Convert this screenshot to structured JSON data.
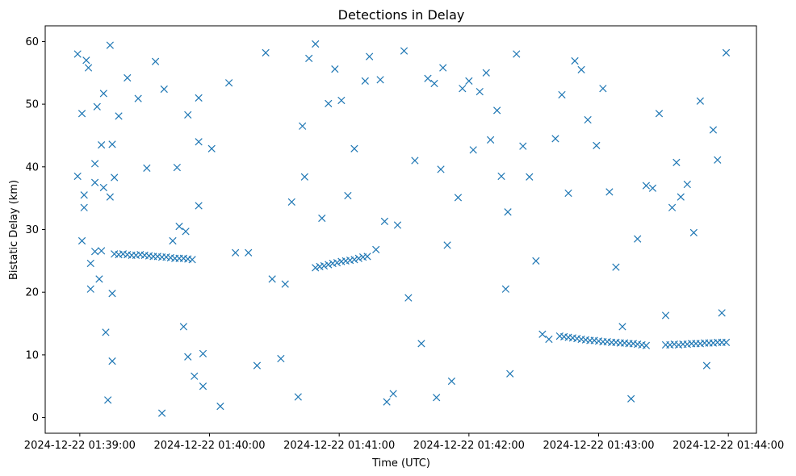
{
  "chart_data": {
    "type": "scatter",
    "title": "Detections in Delay",
    "xlabel": "Time (UTC)",
    "ylabel": "Bistatic Delay (km)",
    "x_unit": "time-of-day",
    "xlim": [
      "01:38:44",
      "01:44:13"
    ],
    "ylim": [
      -2.5,
      62.5
    ],
    "x_ticks": [
      "01:39:00",
      "01:40:00",
      "01:41:00",
      "01:42:00",
      "01:43:00",
      "01:44:00"
    ],
    "x_tick_labels": [
      "2024-12-22 01:39:00",
      "2024-12-22 01:40:00",
      "2024-12-22 01:41:00",
      "2024-12-22 01:42:00",
      "2024-12-22 01:43:00",
      "2024-12-22 01:44:00"
    ],
    "y_ticks": [
      0,
      10,
      20,
      30,
      40,
      50,
      60
    ],
    "grid": false,
    "marker": "x",
    "color": "#1f77b4",
    "series": [
      {
        "x": [
          "01:38:59",
          "01:38:59",
          "01:39:01",
          "01:39:01",
          "01:39:02",
          "01:39:02",
          "01:39:03",
          "01:39:04",
          "01:39:05",
          "01:39:05",
          "01:39:07",
          "01:39:07",
          "01:39:07",
          "01:39:08",
          "01:39:09",
          "01:39:10",
          "01:39:10",
          "01:39:11",
          "01:39:11",
          "01:39:12",
          "01:39:13",
          "01:39:14",
          "01:39:14",
          "01:39:15",
          "01:39:15",
          "01:39:15",
          "01:39:16",
          "01:39:18",
          "01:39:22",
          "01:39:27",
          "01:39:31",
          "01:39:35",
          "01:39:38",
          "01:39:39",
          "01:39:43",
          "01:39:45",
          "01:39:46",
          "01:39:48",
          "01:39:49",
          "01:39:50",
          "01:39:50",
          "01:39:53",
          "01:39:55",
          "01:39:55",
          "01:39:55",
          "01:39:57",
          "01:39:57",
          "01:40:01",
          "01:40:05",
          "01:40:09",
          "01:40:12",
          "01:40:18",
          "01:40:22",
          "01:40:26",
          "01:40:29",
          "01:40:33",
          "01:40:35",
          "01:40:38",
          "01:40:41",
          "01:40:43",
          "01:40:44",
          "01:40:46",
          "01:40:49",
          "01:40:52",
          "01:40:55",
          "01:40:58",
          "01:41:01",
          "01:41:04",
          "01:41:07",
          "01:41:12",
          "01:41:14",
          "01:41:17",
          "01:41:19",
          "01:41:21",
          "01:41:22",
          "01:41:25",
          "01:41:27",
          "01:41:30",
          "01:41:32",
          "01:41:35",
          "01:41:38",
          "01:41:41",
          "01:41:44",
          "01:41:45",
          "01:41:47",
          "01:41:48",
          "01:41:50",
          "01:41:52",
          "01:41:55",
          "01:41:57",
          "01:42:00",
          "01:42:02",
          "01:42:05",
          "01:42:08",
          "01:42:10",
          "01:42:13",
          "01:42:15",
          "01:42:17",
          "01:42:18",
          "01:42:19",
          "01:42:22",
          "01:42:25",
          "01:42:28",
          "01:42:31",
          "01:42:34",
          "01:42:37",
          "01:42:40",
          "01:42:43",
          "01:42:46",
          "01:42:49",
          "01:42:52",
          "01:42:55",
          "01:42:59",
          "01:43:02",
          "01:43:05",
          "01:43:08",
          "01:43:11",
          "01:43:15",
          "01:43:18",
          "01:43:22",
          "01:43:25",
          "01:43:28",
          "01:43:31",
          "01:43:34",
          "01:43:36",
          "01:43:38",
          "01:43:41",
          "01:43:44",
          "01:43:47",
          "01:43:50",
          "01:43:53",
          "01:43:55",
          "01:43:57",
          "01:43:59"
        ],
        "y": [
          58.0,
          38.5,
          48.5,
          28.2,
          35.5,
          33.5,
          57.0,
          55.8,
          20.5,
          24.6,
          37.5,
          26.5,
          40.5,
          49.6,
          22.1,
          26.6,
          43.5,
          36.7,
          51.7,
          13.6,
          2.8,
          59.4,
          35.2,
          43.6,
          19.8,
          9.0,
          38.3,
          48.1,
          54.2,
          50.9,
          39.8,
          56.8,
          0.7,
          52.4,
          28.2,
          39.9,
          30.5,
          14.5,
          29.7,
          48.3,
          9.7,
          6.6,
          44.0,
          33.8,
          51.0,
          5.0,
          10.2,
          42.9,
          1.8,
          53.4,
          26.3,
          26.3,
          8.3,
          58.2,
          22.1,
          9.4,
          21.3,
          34.4,
          3.3,
          46.5,
          38.4,
          57.3,
          59.6,
          31.8,
          50.1,
          55.6,
          50.6,
          35.4,
          42.9,
          53.7,
          57.6,
          26.8,
          53.9,
          31.3,
          2.5,
          3.8,
          30.7,
          58.5,
          19.1,
          41.0,
          11.8,
          54.1,
          53.3,
          3.2,
          39.6,
          55.8,
          27.5,
          5.8,
          35.1,
          52.5,
          53.7,
          42.7,
          52.0,
          55.0,
          44.3,
          49.0,
          38.5,
          20.5,
          32.8,
          7.0,
          58.0,
          43.3,
          38.4,
          25.0,
          13.3,
          12.5,
          44.5,
          51.5,
          35.8,
          56.9,
          55.5,
          47.5,
          43.4,
          52.5,
          36.0,
          24.0,
          14.5,
          3.0,
          28.5,
          37.0,
          36.6,
          48.5,
          16.3,
          33.5,
          40.7,
          35.2,
          37.2,
          29.5,
          50.5,
          8.3,
          45.9,
          41.1,
          16.7,
          58.2
        ],
        "track_1": {
          "x": [
            "01:39:16",
            "01:39:18",
            "01:39:20",
            "01:39:22",
            "01:39:24",
            "01:39:26",
            "01:39:28",
            "01:39:30",
            "01:39:32",
            "01:39:34",
            "01:39:36",
            "01:39:38",
            "01:39:40",
            "01:39:42",
            "01:39:44",
            "01:39:46",
            "01:39:48",
            "01:39:50",
            "01:39:52"
          ],
          "y": [
            26.1,
            26.0,
            26.1,
            26.0,
            25.9,
            25.9,
            26.0,
            25.9,
            25.8,
            25.7,
            25.7,
            25.6,
            25.6,
            25.5,
            25.4,
            25.4,
            25.4,
            25.3,
            25.2
          ]
        },
        "track_2": {
          "x": [
            "01:40:49",
            "01:40:51",
            "01:40:53",
            "01:40:55",
            "01:40:57",
            "01:40:59",
            "01:41:01",
            "01:41:03",
            "01:41:05",
            "01:41:07",
            "01:41:09",
            "01:41:11",
            "01:41:13"
          ],
          "y": [
            23.9,
            24.1,
            24.2,
            24.4,
            24.6,
            24.7,
            24.9,
            25.0,
            25.1,
            25.2,
            25.4,
            25.6,
            25.7
          ]
        },
        "track_3": {
          "x": [
            "01:42:42",
            "01:42:44",
            "01:42:46",
            "01:42:48",
            "01:42:50",
            "01:42:52",
            "01:42:54",
            "01:42:56",
            "01:42:58",
            "01:43:00",
            "01:43:02",
            "01:43:04",
            "01:43:06",
            "01:43:08",
            "01:43:10",
            "01:43:12",
            "01:43:14",
            "01:43:16",
            "01:43:18",
            "01:43:20",
            "01:43:22"
          ],
          "y": [
            13.0,
            12.9,
            12.8,
            12.7,
            12.6,
            12.5,
            12.4,
            12.3,
            12.3,
            12.2,
            12.1,
            12.1,
            12.0,
            12.0,
            11.9,
            11.9,
            11.8,
            11.8,
            11.7,
            11.6,
            11.5
          ]
        },
        "track_4": {
          "x": [
            "01:43:31",
            "01:43:33",
            "01:43:35",
            "01:43:37",
            "01:43:39",
            "01:43:41",
            "01:43:43",
            "01:43:45",
            "01:43:47",
            "01:43:49",
            "01:43:51",
            "01:43:53",
            "01:43:55",
            "01:43:57",
            "01:43:59"
          ],
          "y": [
            11.6,
            11.6,
            11.7,
            11.6,
            11.7,
            11.7,
            11.8,
            11.8,
            11.8,
            11.9,
            11.9,
            11.9,
            12.0,
            12.0,
            12.0
          ]
        }
      }
    ]
  }
}
